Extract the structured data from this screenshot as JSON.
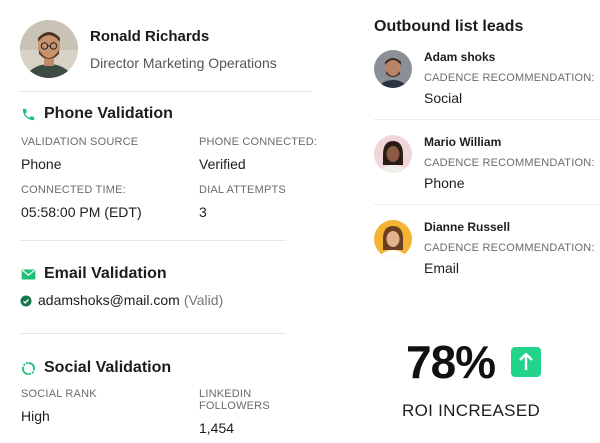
{
  "profile": {
    "name": "Ronald Richards",
    "role": "Director Marketing Operations"
  },
  "phone_validation": {
    "title": "Phone Validation",
    "fields": [
      {
        "label": "VALIDATION SOURCE",
        "value": "Phone"
      },
      {
        "label": "PHONE CONNECTED:",
        "value": "Verified"
      },
      {
        "label": "CONNECTED TIME:",
        "value": "05:58:00 PM (EDT)"
      },
      {
        "label": "DIAL ATTEMPTS",
        "value": "3"
      }
    ]
  },
  "email_validation": {
    "title": "Email Validation",
    "email": "adamshoks@mail.com",
    "status": "(Valid)"
  },
  "social_validation": {
    "title": "Social Validation",
    "fields": [
      {
        "label": "SOCIAL RANK",
        "value": "High"
      },
      {
        "label": "LINKEDIN FOLLOWERS",
        "value": "1,454"
      }
    ]
  },
  "outbound": {
    "title": "Outbound list leads",
    "leads": [
      {
        "name": "Adam shoks",
        "label": "CADENCE RECOMMENDATION:",
        "value": "Social"
      },
      {
        "name": "Mario William",
        "label": "CADENCE RECOMMENDATION:",
        "value": "Phone"
      },
      {
        "name": "Dianne Russell",
        "label": "CADENCE RECOMMENDATION:",
        "value": "Email"
      }
    ]
  },
  "roi": {
    "value": "78%",
    "label": "ROI INCREASED"
  },
  "colors": {
    "accent": "#22d38a",
    "icon_green": "#1fbf7a"
  }
}
